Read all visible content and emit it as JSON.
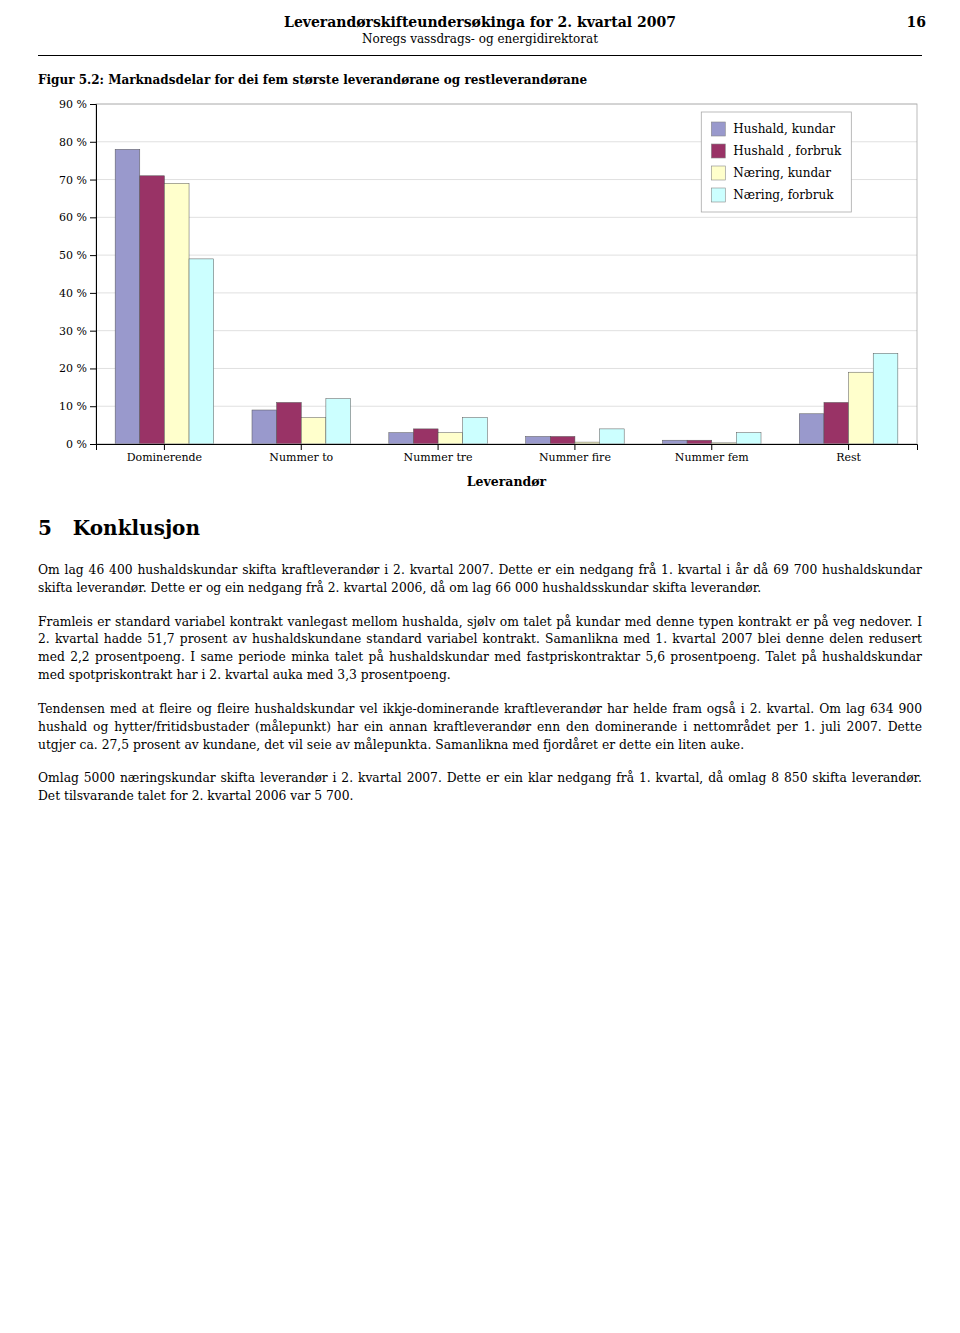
{
  "page_header": {
    "title": "Leverandørskifteundersøkinga for 2. kvartal 2007",
    "page": "16",
    "subtitle": "Noregs vassdrags- og energidirektorat"
  },
  "chart_data": {
    "type": "bar",
    "title": "Figur 5.2: Marknadsdelar for dei fem største leverandørane og restleverandørane",
    "xlabel": "Leverandør",
    "categories": [
      "Dominerende",
      "Nummer to",
      "Nummer tre",
      "Nummer fire",
      "Nummer fem",
      "Rest"
    ],
    "series": [
      {
        "name": "Hushald, kundar",
        "color": "#9999CC",
        "values": [
          78,
          9,
          3,
          2,
          1,
          8
        ]
      },
      {
        "name": "Hushald , forbruk",
        "color": "#993366",
        "values": [
          71,
          11,
          4,
          2,
          1,
          11
        ]
      },
      {
        "name": "Næring, kundar",
        "color": "#FFFFCC",
        "values": [
          69,
          7,
          3,
          0.5,
          0.3,
          19
        ]
      },
      {
        "name": "Næring, forbruk",
        "color": "#CCFFFF",
        "values": [
          49,
          12,
          7,
          4,
          3,
          24
        ]
      }
    ],
    "ylim": [
      0,
      90
    ],
    "yticks": [
      {
        "value": 0,
        "label": "0 %"
      },
      {
        "value": 10,
        "label": "10 %"
      },
      {
        "value": 20,
        "label": "20 %"
      },
      {
        "value": 30,
        "label": "30 %"
      },
      {
        "value": 40,
        "label": "40 %"
      },
      {
        "value": 50,
        "label": "50 %"
      },
      {
        "value": 60,
        "label": "60 %"
      },
      {
        "value": 70,
        "label": "70 %"
      },
      {
        "value": 80,
        "label": "80 %"
      },
      {
        "value": 90,
        "label": "90 %"
      }
    ],
    "grid": true,
    "legend": "upper right"
  },
  "section_title": "5   Konklusjon",
  "paragraphs": [
    "Om lag 46 400 hushaldskundar skifta kraftleverandør i 2. kvartal 2007. Dette er ein nedgang frå 1. kvartal i år då 69 700 hushaldskundar skifta leverandør. Dette er og ein nedgang frå 2. kvartal 2006, då om lag 66 000 hushaldsskundar skifta leverandør.",
    "Framleis er standard variabel kontrakt vanlegast mellom hushalda, sjølv om talet på kundar med denne typen kontrakt er på veg nedover. I 2. kvartal hadde 51,7 prosent av hushaldskundane standard variabel kontrakt. Samanlikna med 1. kvartal 2007 blei denne delen redusert med 2,2 prosentpoeng. I same periode minka talet på hushaldskundar med fastpriskontraktar 5,6 prosentpoeng. Talet på hushaldskundar med spotpriskontrakt har i 2. kvartal auka med 3,3 prosentpoeng.",
    "Tendensen med at fleire og fleire hushaldskundar vel ikkje-dominerande kraftleverandør har helde fram også i 2. kvartal. Om lag 634 900 hushald og hytter/fritidsbustader (målepunkt) har ein annan kraftleverandør enn den dominerande i nettområdet per 1. juli 2007. Dette utgjer ca. 27,5 prosent av kundane, det vil seie av målepunkta. Samanlikna med fjordåret er dette ein liten auke.",
    "Omlag 5000 næringskundar skifta leverandør i 2. kvartal 2007. Dette er ein klar nedgang frå 1. kvartal, då omlag 8 850 skifta leverandør. Det tilsvarande talet for 2. kvartal 2006 var 5 700."
  ]
}
